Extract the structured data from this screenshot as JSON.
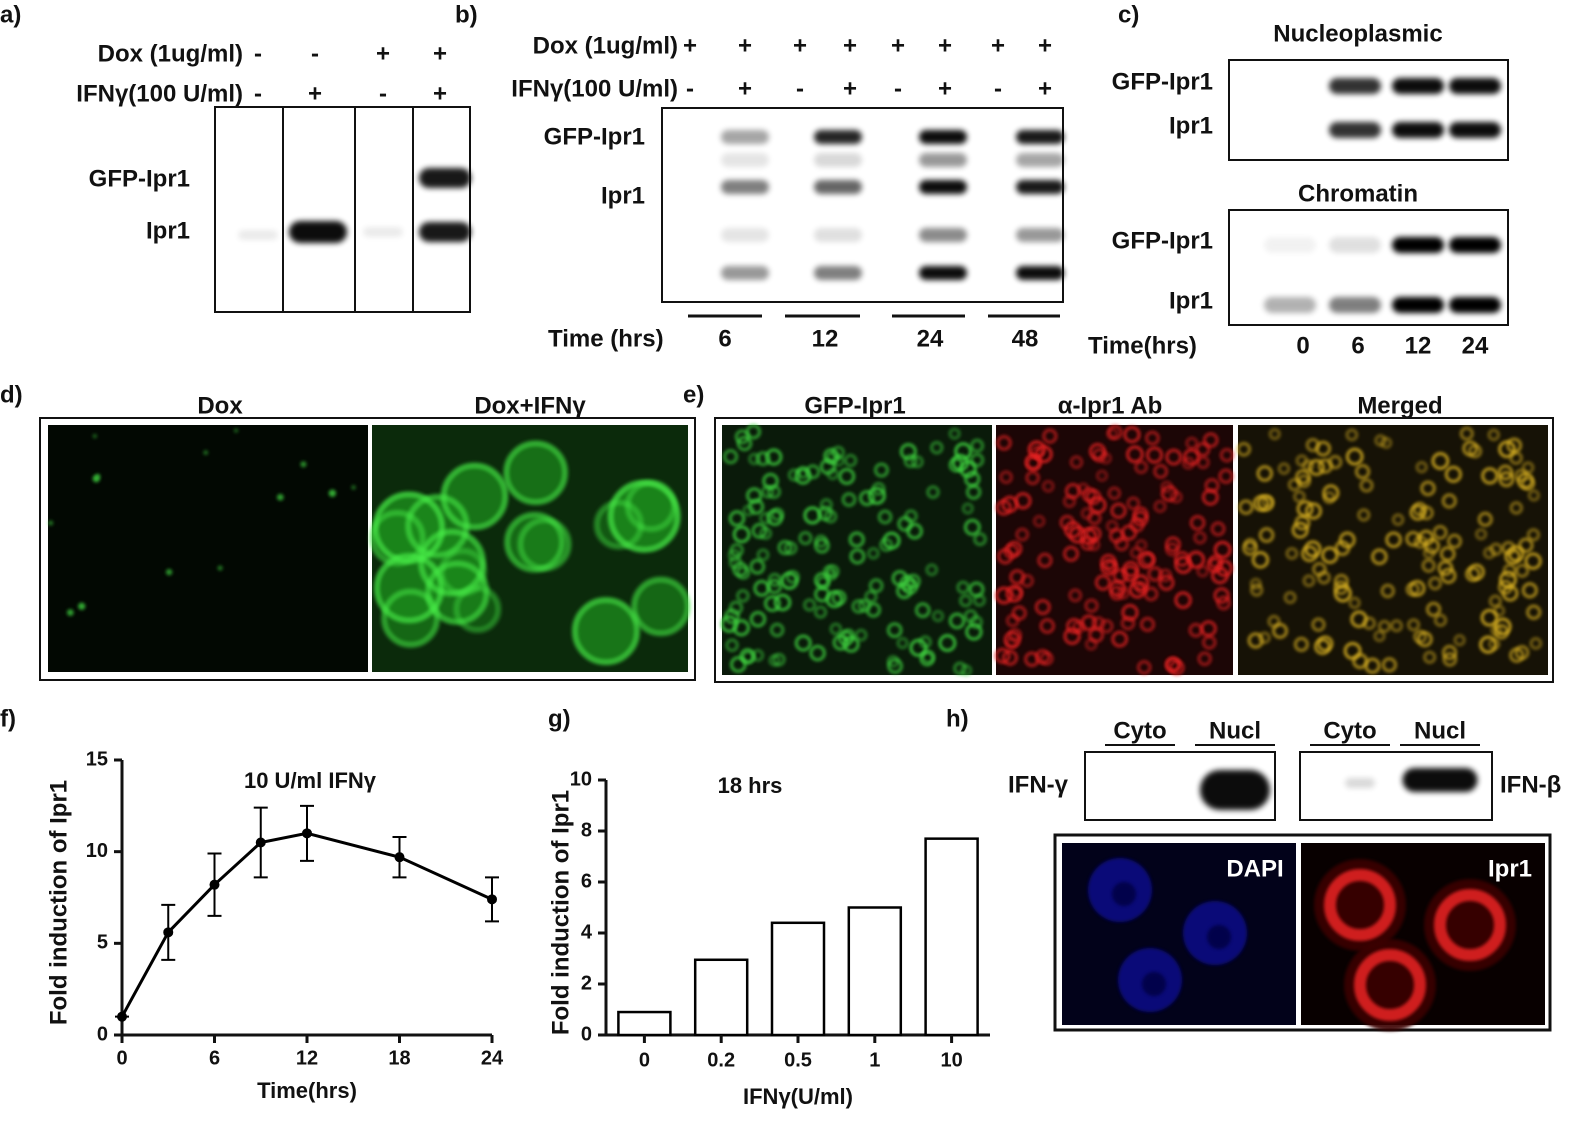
{
  "panels": {
    "a": {
      "label": "a)",
      "conditions": [
        {
          "name": "Dox (1ug/ml)",
          "signs": [
            "-",
            "-",
            "+",
            "+"
          ]
        },
        {
          "name": "IFNγ(100 U/ml)",
          "signs": [
            "-",
            "+",
            "-",
            "+"
          ]
        }
      ],
      "bands": [
        "GFP-Ipr1",
        "Ipr1"
      ]
    },
    "b": {
      "label": "b)",
      "conditions": [
        {
          "name": "Dox (1ug/ml)",
          "signs": [
            "+",
            "+",
            "+",
            "+",
            "+",
            "+",
            "+",
            "+"
          ]
        },
        {
          "name": "IFNγ(100 U/ml)",
          "signs": [
            "-",
            "+",
            "-",
            "+",
            "-",
            "+",
            "-",
            "+"
          ]
        }
      ],
      "bands": [
        "GFP-Ipr1",
        "Ipr1"
      ],
      "time_label": "Time (hrs)",
      "times": [
        "6",
        "12",
        "24",
        "48"
      ]
    },
    "c": {
      "label": "c)",
      "blots": [
        {
          "title": "Nucleoplasmic",
          "bands": [
            "GFP-Ipr1",
            "Ipr1"
          ]
        },
        {
          "title": "Chromatin",
          "bands": [
            "GFP-Ipr1",
            "Ipr1"
          ]
        }
      ],
      "time_label": "Time(hrs)",
      "times": [
        "0",
        "6",
        "12",
        "24"
      ]
    },
    "d": {
      "label": "d)",
      "images": [
        "Dox",
        "Dox+IFNγ"
      ]
    },
    "e": {
      "label": "e)",
      "images": [
        "GFP-Ipr1",
        "α-Ipr1 Ab",
        "Merged"
      ]
    },
    "h": {
      "label": "h)",
      "lanes": [
        "Cyto",
        "Nucl",
        "Cyto",
        "Nucl"
      ],
      "blots": [
        "IFN-γ",
        "IFN-β"
      ],
      "images": [
        "DAPI",
        "Ipr1"
      ]
    }
  },
  "chart_data": [
    {
      "type": "line",
      "panel_label": "f)",
      "title": "10 U/ml IFNγ",
      "xlabel": "Time(hrs)",
      "ylabel": "Fold induction of Ipr1",
      "x": [
        0,
        3,
        6,
        9,
        12,
        18,
        24
      ],
      "values": [
        1,
        5.6,
        8.2,
        10.5,
        11,
        9.7,
        7.4
      ],
      "errors": [
        0,
        1.5,
        1.7,
        1.9,
        1.5,
        1.1,
        1.2
      ],
      "color": "#000000",
      "xlim": [
        0,
        24
      ],
      "xticks": [
        0,
        6,
        12,
        18,
        24
      ],
      "ylim": [
        0,
        15
      ],
      "yticks": [
        0,
        5,
        10,
        15
      ]
    },
    {
      "type": "bar",
      "panel_label": "g)",
      "title": "18 hrs",
      "xlabel": "IFNγ(U/ml)",
      "ylabel": "Fold induction of Ipr1",
      "categories": [
        "0",
        "0.2",
        "0.5",
        "1",
        "10"
      ],
      "values": [
        0.9,
        2.95,
        4.4,
        5.0,
        7.7
      ],
      "color": "#ffffff",
      "edgecolor": "#000000",
      "ylim": [
        0,
        10
      ],
      "yticks": [
        0,
        2,
        4,
        6,
        8,
        10
      ]
    }
  ]
}
